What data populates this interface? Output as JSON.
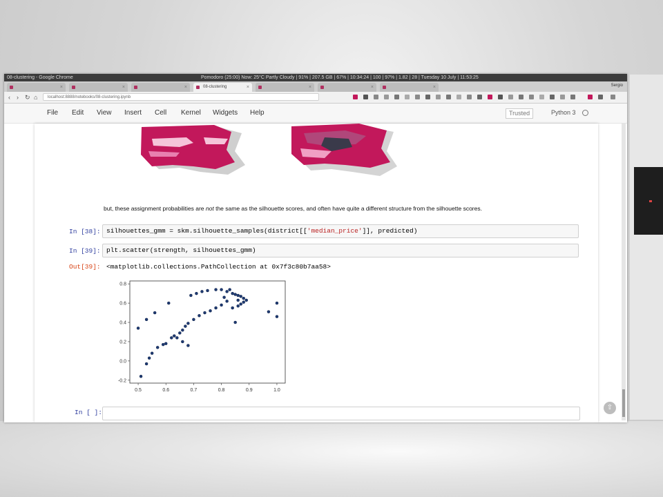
{
  "colors": {
    "accent": "#c2185b",
    "prompt_in": "#303f9f",
    "prompt_out": "#d84315",
    "string": "#ba2121"
  },
  "os_bar": {
    "window_title": "08-clustering - Google Chrome",
    "status_left": "Pomodoro (25:00)",
    "status_right": "Now: 25°C Partly Cloudy | 91% | 207.5 GB | 67% | 10:34:24 | 100 | 97% | 1.82 | 28 | Tuesday 10 July | 11:53:25"
  },
  "tabs": [
    {
      "label": "",
      "active": false
    },
    {
      "label": "",
      "active": false
    },
    {
      "label": "",
      "active": false
    },
    {
      "label": "08-clustering",
      "active": true
    },
    {
      "label": "",
      "active": false
    },
    {
      "label": "",
      "active": false
    },
    {
      "label": "",
      "active": false
    }
  ],
  "profile_name": "Sergio",
  "address": {
    "url": "localhost:8888/notebooks/08-clustering.ipynb"
  },
  "menu": [
    "File",
    "Edit",
    "View",
    "Insert",
    "Cell",
    "Kernel",
    "Widgets",
    "Help"
  ],
  "trusted_label": "Trusted",
  "kernel_label": "Python 3",
  "notebook": {
    "md_prefix": "but, these assignment probabilities are ",
    "md_em": "not",
    "md_suffix": " the same as the silhouette scores, and often have quite a different structure from the silhouette scores.",
    "cell38": {
      "prompt": "In [38]:",
      "code_pre": "silhouettes_gmm = skm.silhouette_samples(district[[",
      "code_str": "'median_price'",
      "code_post": "]], predicted)"
    },
    "cell39": {
      "prompt": "In [39]:",
      "code": "plt.scatter(strength, silhouettes_gmm)",
      "out_prompt": "Out[39]:",
      "output": "<matplotlib.collections.PathCollection at 0x7f3c80b7aa58>"
    },
    "empty_prompt": "In [ ]:"
  },
  "chart_data": {
    "type": "scatter",
    "title": "",
    "xlabel": "",
    "ylabel": "",
    "xlim": [
      0.47,
      1.03
    ],
    "ylim": [
      -0.23,
      0.83
    ],
    "xticks": [
      "0.5",
      "0.6",
      "0.7",
      "0.8",
      "0.9",
      "1.0"
    ],
    "yticks": [
      "-0.2",
      "0.0",
      "0.2",
      "0.4",
      "0.6",
      "0.8"
    ],
    "xtick_values": [
      0.5,
      0.6,
      0.7,
      0.8,
      0.9,
      1.0
    ],
    "ytick_values": [
      -0.2,
      0.0,
      0.2,
      0.4,
      0.6,
      0.8
    ],
    "grid": false,
    "color": "#1f3b73",
    "points": [
      [
        0.51,
        -0.16
      ],
      [
        0.53,
        -0.03
      ],
      [
        0.54,
        0.03
      ],
      [
        0.55,
        0.08
      ],
      [
        0.57,
        0.14
      ],
      [
        0.59,
        0.17
      ],
      [
        0.6,
        0.18
      ],
      [
        0.62,
        0.24
      ],
      [
        0.63,
        0.26
      ],
      [
        0.65,
        0.29
      ],
      [
        0.66,
        0.32
      ],
      [
        0.67,
        0.36
      ],
      [
        0.68,
        0.39
      ],
      [
        0.7,
        0.43
      ],
      [
        0.72,
        0.47
      ],
      [
        0.74,
        0.5
      ],
      [
        0.76,
        0.52
      ],
      [
        0.78,
        0.55
      ],
      [
        0.8,
        0.58
      ],
      [
        0.82,
        0.62
      ],
      [
        0.84,
        0.55
      ],
      [
        0.86,
        0.57
      ],
      [
        0.87,
        0.59
      ],
      [
        0.88,
        0.61
      ],
      [
        0.89,
        0.63
      ],
      [
        0.5,
        0.34
      ],
      [
        0.53,
        0.43
      ],
      [
        0.56,
        0.5
      ],
      [
        0.61,
        0.6
      ],
      [
        0.69,
        0.68
      ],
      [
        0.71,
        0.7
      ],
      [
        0.73,
        0.72
      ],
      [
        0.75,
        0.73
      ],
      [
        0.78,
        0.74
      ],
      [
        0.8,
        0.74
      ],
      [
        0.82,
        0.72
      ],
      [
        0.83,
        0.74
      ],
      [
        0.84,
        0.7
      ],
      [
        0.85,
        0.69
      ],
      [
        0.86,
        0.68
      ],
      [
        0.87,
        0.67
      ],
      [
        0.88,
        0.65
      ],
      [
        0.85,
        0.4
      ],
      [
        0.64,
        0.24
      ],
      [
        0.66,
        0.2
      ],
      [
        0.68,
        0.16
      ],
      [
        0.97,
        0.51
      ],
      [
        1.0,
        0.6
      ],
      [
        1.0,
        0.46
      ],
      [
        0.86,
        0.63
      ],
      [
        0.81,
        0.66
      ]
    ]
  }
}
